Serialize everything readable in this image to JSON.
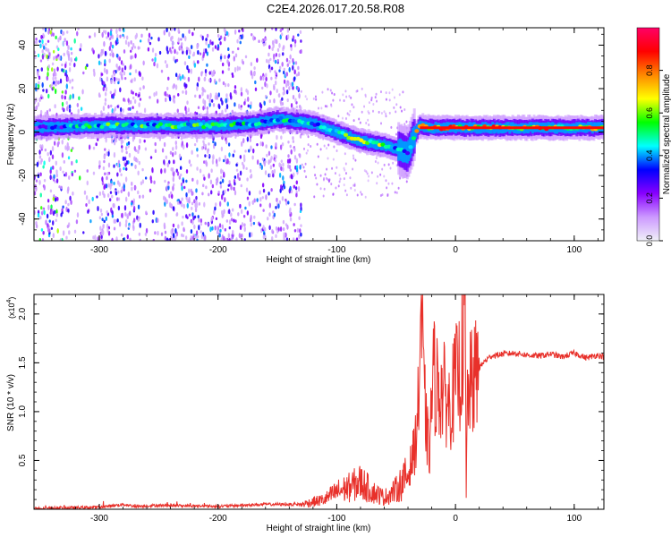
{
  "title": "C2E4.2026.017.20.58.R08",
  "chart_data": [
    {
      "type": "heatmap",
      "name": "spectrogram",
      "xlabel": "Height of straight line (km)",
      "ylabel": "Frequency (Hz)",
      "xlim": [
        -355,
        125
      ],
      "ylim": [
        -50,
        48
      ],
      "x_ticks": [
        -300,
        -200,
        -100,
        0,
        100
      ],
      "x_tick_labels": [
        "-300",
        "-200",
        "-100",
        "0",
        "100"
      ],
      "y_ticks": [
        40,
        20,
        0,
        -20,
        -40
      ],
      "y_tick_labels": [
        "40",
        "20",
        "0",
        "-20",
        "-40"
      ],
      "colorbar": {
        "label": "Normalized spectral amplitude",
        "range": [
          0,
          1
        ],
        "ticks": [
          0.0,
          0.2,
          0.4,
          0.6,
          0.8
        ],
        "tick_labels": [
          "0.0",
          "0.2",
          "0.4",
          "0.6",
          "0.8"
        ],
        "colormap": [
          "#f0f0f8",
          "#cc99ff",
          "#8800ff",
          "#0000ff",
          "#00ffff",
          "#00ff00",
          "#ffff00",
          "#ff8800",
          "#ff0000",
          "#ff0066"
        ]
      },
      "ridge": {
        "x": [
          -355,
          -300,
          -250,
          -200,
          -170,
          -150,
          -120,
          -100,
          -80,
          -60,
          -48,
          -40,
          -35,
          -30,
          -20,
          0,
          50,
          80,
          90,
          125
        ],
        "frequency": [
          2,
          3,
          3,
          3,
          4,
          6,
          4,
          0,
          -4,
          -6,
          -8,
          -10,
          -2,
          3,
          2,
          2,
          2,
          2,
          2,
          2
        ],
        "peak_amplitude": [
          0.3,
          0.6,
          0.6,
          0.6,
          0.5,
          0.5,
          0.5,
          0.6,
          0.7,
          0.7,
          0.5,
          0.4,
          0.7,
          0.9,
          0.9,
          0.9,
          0.9,
          0.9,
          0.7,
          0.9
        ]
      }
    },
    {
      "type": "line",
      "name": "snr",
      "xlabel": "Height of straight line (km)",
      "ylabel": "SNR (10 * v/v)",
      "y_multiplier": "(x10",
      "y_multiplier_exp": "4",
      "xlim": [
        -355,
        125
      ],
      "ylim": [
        0,
        2.2
      ],
      "x_ticks": [
        -300,
        -200,
        -100,
        0,
        100
      ],
      "x_tick_labels": [
        "-300",
        "-200",
        "-100",
        "0",
        "100"
      ],
      "y_ticks": [
        0.5,
        1.0,
        1.5,
        2.0
      ],
      "y_tick_labels": [
        "0.5",
        "1.0",
        "1.5",
        "2.0"
      ],
      "color": "#e8302a",
      "series": [
        {
          "name": "SNR",
          "x": [
            -355,
            -300,
            -280,
            -270,
            -250,
            -200,
            -160,
            -130,
            -110,
            -100,
            -90,
            -80,
            -70,
            -60,
            -50,
            -40,
            -34,
            -31,
            -29,
            -27,
            -25,
            -22,
            -19,
            -15,
            -10,
            -5,
            0,
            5,
            8,
            9,
            10,
            12,
            15,
            20,
            25,
            30,
            40,
            50,
            60,
            70,
            80,
            90,
            100,
            110,
            120,
            125
          ],
          "y": [
            0.01,
            0.02,
            0.05,
            0.03,
            0.04,
            0.03,
            0.05,
            0.05,
            0.1,
            0.18,
            0.22,
            0.28,
            0.18,
            0.12,
            0.2,
            0.35,
            0.65,
            1.1,
            2.12,
            1.3,
            0.9,
            0.55,
            1.4,
            1.25,
            1.2,
            1.05,
            1.3,
            1.45,
            2.25,
            0.12,
            1.1,
            1.25,
            1.3,
            1.45,
            1.52,
            1.57,
            1.59,
            1.6,
            1.58,
            1.57,
            1.59,
            1.56,
            1.6,
            1.55,
            1.58,
            1.56
          ]
        }
      ]
    }
  ]
}
